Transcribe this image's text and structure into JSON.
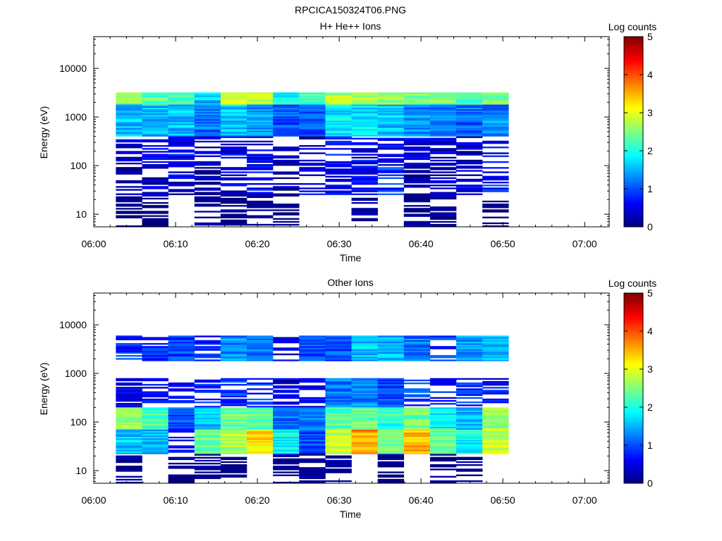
{
  "figure_title": "RPCICA150324T06.PNG",
  "chart_data": [
    {
      "type": "heatmap",
      "title": "H+ He++ Ions",
      "xlabel": "Time",
      "ylabel": "Energy (eV)",
      "x_axis": {
        "type": "time",
        "range": [
          "06:00",
          "07:03"
        ],
        "tick_labels": [
          "06:00",
          "06:10",
          "06:20",
          "06:30",
          "06:40",
          "06:50",
          "07:00"
        ],
        "tick_values_min": [
          0,
          10,
          20,
          30,
          40,
          50,
          60
        ]
      },
      "y_axis": {
        "scale": "log",
        "range_eV": [
          5.5,
          45000
        ],
        "tick_labels": [
          "10",
          "100",
          "1000",
          "10000"
        ],
        "tick_values": [
          10,
          100,
          1000,
          10000
        ]
      },
      "colorbar": {
        "label": "Log counts",
        "range": [
          0,
          5
        ],
        "tick_labels": [
          "0",
          "1",
          "2",
          "3",
          "4",
          "5"
        ],
        "colormap": "jet"
      },
      "grid": false,
      "time_bins_min": [
        2.7,
        5.9,
        9.1,
        12.3,
        15.5,
        18.7,
        21.9,
        25.1,
        28.3,
        31.5,
        34.7,
        37.9,
        41.1,
        44.3,
        47.5,
        50.7
      ],
      "bands": [
        {
          "e_range_eV": [
            1800,
            3200
          ],
          "level": [
            2.5,
            2.3,
            2.1,
            1.6,
            2.8,
            2.9,
            2.0,
            2.2,
            2.7,
            2.8,
            2.6,
            2.6,
            2.4,
            2.2,
            2.6
          ]
        },
        {
          "e_range_eV": [
            400,
            1800
          ],
          "level": [
            1.6,
            1.5,
            1.6,
            1.2,
            1.6,
            1.4,
            1.0,
            1.1,
            1.8,
            1.7,
            1.6,
            1.3,
            1.2,
            1.1,
            1.3
          ]
        },
        {
          "e_range_eV": [
            100,
            400
          ],
          "level": [
            0.4,
            0.5,
            0.6,
            0.3,
            0.6,
            0.5,
            0.2,
            0.3,
            0.7,
            0.6,
            0.5,
            0.4,
            0.4,
            0.3,
            0.5
          ]
        },
        {
          "e_range_eV": [
            25,
            100
          ],
          "level": [
            0.1,
            0.3,
            0.4,
            0.2,
            0.4,
            0.6,
            0.2,
            0.5,
            0.6,
            0.6,
            0.9,
            0.2,
            0.3,
            0.5,
            0.7
          ]
        },
        {
          "e_range_eV": [
            5.5,
            25
          ],
          "level": [
            0.0,
            0.0,
            null,
            0.0,
            0.0,
            0.0,
            0.0,
            null,
            null,
            0.0,
            null,
            0.0,
            0.0,
            null,
            0.0
          ]
        }
      ]
    },
    {
      "type": "heatmap",
      "title": "Other Ions",
      "xlabel": "Time",
      "ylabel": "Energy (eV)",
      "x_axis": {
        "type": "time",
        "range": [
          "06:00",
          "07:03"
        ],
        "tick_labels": [
          "06:00",
          "06:10",
          "06:20",
          "06:30",
          "06:40",
          "06:50",
          "07:00"
        ],
        "tick_values_min": [
          0,
          10,
          20,
          30,
          40,
          50,
          60
        ]
      },
      "y_axis": {
        "scale": "log",
        "range_eV": [
          5.5,
          45000
        ],
        "tick_labels": [
          "10",
          "100",
          "1000",
          "10000"
        ],
        "tick_values": [
          10,
          100,
          1000,
          10000
        ]
      },
      "colorbar": {
        "label": "Log counts",
        "range": [
          0,
          5
        ],
        "tick_labels": [
          "0",
          "1",
          "2",
          "3",
          "4",
          "5"
        ],
        "colormap": "jet"
      },
      "grid": false,
      "time_bins_min": [
        2.7,
        5.9,
        9.1,
        12.3,
        15.5,
        18.7,
        21.9,
        25.1,
        28.3,
        31.5,
        34.7,
        37.9,
        41.1,
        44.3,
        47.5,
        50.7
      ],
      "bands": [
        {
          "e_range_eV": [
            1800,
            6000
          ],
          "level": [
            0.8,
            0.9,
            1.0,
            0.7,
            1.3,
            1.2,
            0.5,
            1.0,
            1.0,
            1.6,
            1.5,
            1.2,
            0.9,
            1.4,
            1.6
          ]
        },
        {
          "e_range_eV": [
            200,
            800
          ],
          "level": [
            0.5,
            0.6,
            0.7,
            0.8,
            0.9,
            0.8,
            0.5,
            0.6,
            1.2,
            1.3,
            1.0,
            0.9,
            0.7,
            0.8,
            0.6
          ]
        },
        {
          "e_range_eV": [
            70,
            200
          ],
          "level": [
            2.6,
            2.2,
            1.0,
            1.6,
            2.4,
            2.3,
            1.2,
            1.3,
            2.3,
            2.4,
            2.1,
            2.4,
            1.9,
            1.6,
            2.6
          ]
        },
        {
          "e_range_eV": [
            22,
            70
          ],
          "level": [
            1.6,
            1.5,
            0.7,
            2.4,
            2.7,
            3.3,
            1.9,
            1.0,
            2.9,
            3.6,
            2.5,
            3.5,
            2.4,
            1.9,
            2.8
          ]
        },
        {
          "e_range_eV": [
            5.5,
            22
          ],
          "level": [
            0.0,
            null,
            0.0,
            0.0,
            0.0,
            null,
            0.0,
            0.0,
            0.0,
            null,
            0.0,
            null,
            0.0,
            0.0,
            null
          ]
        }
      ]
    }
  ]
}
